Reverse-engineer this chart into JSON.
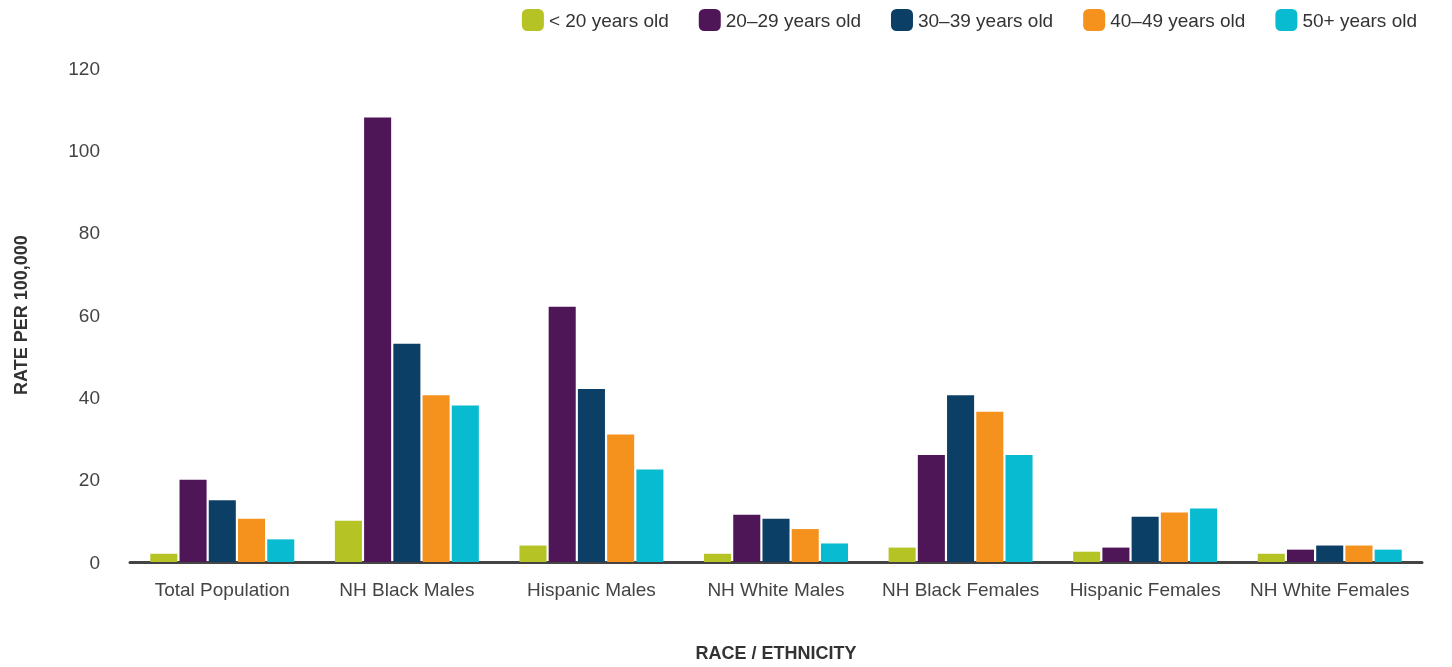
{
  "chart_data": {
    "type": "bar",
    "xlabel": "RACE / ETHNICITY",
    "ylabel": "RATE PER 100,000",
    "categories": [
      "Total Population",
      "NH Black Males",
      "Hispanic Males",
      "NH White Males",
      "NH Black Females",
      "Hispanic Females",
      "NH White Females"
    ],
    "series": [
      {
        "name": "< 20 years old",
        "color": "#b5c424",
        "values": [
          2,
          10,
          4,
          2,
          3.5,
          2.5,
          2
        ]
      },
      {
        "name": "20–29 years old",
        "color": "#4f1657",
        "values": [
          20,
          108,
          62,
          11.5,
          26,
          3.5,
          3
        ]
      },
      {
        "name": "30–39 years old",
        "color": "#0b3f66",
        "values": [
          15,
          53,
          42,
          10.5,
          40.5,
          11,
          4
        ]
      },
      {
        "name": "40–49 years old",
        "color": "#f5921e",
        "values": [
          10.5,
          40.5,
          31,
          8,
          36.5,
          12,
          4
        ]
      },
      {
        "name": "50+ years old",
        "color": "#08bbd0",
        "values": [
          5.5,
          38,
          22.5,
          4.5,
          26,
          13,
          3
        ]
      }
    ],
    "ylim": [
      0,
      120
    ],
    "yticks": [
      0,
      20,
      40,
      60,
      80,
      100,
      120
    ],
    "grid": false,
    "legend": "top right"
  }
}
